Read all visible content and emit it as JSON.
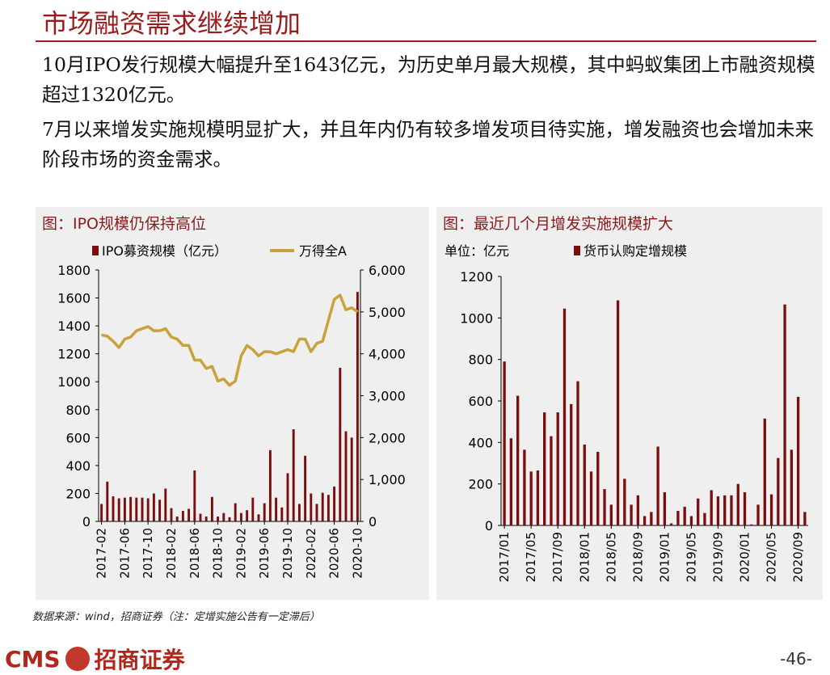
{
  "title": "市场融资需求继续增加",
  "paragraphs": [
    "10月IPO发行规模大幅提升至1643亿元，为历史单月最大规模，其中蚂蚁集团上市融资规模超过1320亿元。",
    "7月以来增发实施规模明显扩大，并且年内仍有较多增发项目待实施，增发融资也会增加未来阶段市场的资金需求。"
  ],
  "source": "数据来源：wind，招商证券（注：定增实施公告有一定滞后）",
  "logo": {
    "en": "CMS",
    "cn": "招商证券"
  },
  "page_number": "-46-",
  "chart_data": [
    {
      "type": "bar_line",
      "title": "图：IPO规模仍保持高位",
      "categories": [
        "2017-02",
        null,
        null,
        null,
        "2017-06",
        null,
        null,
        null,
        "2017-10",
        null,
        null,
        null,
        "2018-02",
        null,
        null,
        null,
        "2018-06",
        null,
        null,
        null,
        "2018-10",
        null,
        null,
        null,
        "2019-02",
        null,
        null,
        null,
        "2019-06",
        null,
        null,
        null,
        "2019-10",
        null,
        null,
        null,
        "2020-02",
        null,
        null,
        null,
        "2020-06",
        null,
        null,
        null,
        "2020-10"
      ],
      "series": [
        {
          "name": "IPO募资规模（亿元）",
          "type": "bar",
          "color": "#7a0d0d",
          "values": [
            125,
            285,
            180,
            165,
            170,
            175,
            170,
            170,
            165,
            200,
            155,
            235,
            95,
            35,
            75,
            90,
            365,
            55,
            35,
            175,
            35,
            60,
            30,
            130,
            60,
            80,
            170,
            50,
            130,
            510,
            170,
            100,
            345,
            660,
            125,
            470,
            200,
            125,
            205,
            190,
            250,
            1100,
            645,
            600,
            1643
          ]
        },
        {
          "name": "万得全A",
          "type": "line",
          "axis": "y2",
          "color": "#c9a23c",
          "values": [
            4450,
            4420,
            4300,
            4150,
            4350,
            4400,
            4550,
            4600,
            4650,
            4550,
            4550,
            4600,
            4400,
            4350,
            4200,
            4200,
            3850,
            3850,
            3650,
            3700,
            3350,
            3400,
            3250,
            3350,
            3950,
            4200,
            4100,
            3950,
            4050,
            4050,
            4000,
            4050,
            4100,
            4050,
            4350,
            4350,
            4050,
            4250,
            4300,
            4800,
            5300,
            5400,
            5050,
            5100,
            5000
          ]
        }
      ],
      "ylim": [
        0,
        1800
      ],
      "yticks": [
        0,
        200,
        400,
        600,
        800,
        1000,
        1200,
        1400,
        1600,
        1800
      ],
      "y2lim": [
        0,
        6000
      ],
      "y2ticks": [
        0,
        {
          "value": 1000,
          "label": "1,000"
        },
        {
          "value": 2000,
          "label": "2,000"
        },
        {
          "value": 3000,
          "label": "3,000"
        },
        {
          "value": 4000,
          "label": "4,000"
        },
        {
          "value": 5000,
          "label": "5,000"
        },
        {
          "value": 6000,
          "label": "6,000"
        }
      ]
    },
    {
      "type": "bar",
      "title": "图：最近几个月增发实施规模扩大",
      "y_label": "单位：亿元",
      "categories": [
        "2017/01",
        null,
        null,
        null,
        "2017/05",
        null,
        null,
        null,
        "2017/09",
        null,
        null,
        null,
        "2018/01",
        null,
        null,
        null,
        "2018/05",
        null,
        null,
        null,
        "2018/09",
        null,
        null,
        null,
        "2019/01",
        null,
        null,
        null,
        "2019/05",
        null,
        null,
        null,
        "2019/09",
        null,
        null,
        null,
        "2020/01",
        null,
        null,
        null,
        "2020/05",
        null,
        null,
        null,
        "2020/09",
        null
      ],
      "series": [
        {
          "name": "货币认购定增规模",
          "type": "bar",
          "color": "#7a0d0d",
          "values": [
            790,
            420,
            625,
            365,
            260,
            265,
            545,
            430,
            545,
            1045,
            585,
            695,
            390,
            260,
            355,
            175,
            100,
            1085,
            225,
            100,
            145,
            45,
            65,
            380,
            160,
            10,
            70,
            90,
            45,
            130,
            60,
            170,
            140,
            145,
            145,
            200,
            160,
            5,
            100,
            515,
            150,
            325,
            1065,
            365,
            620,
            65
          ]
        }
      ],
      "ylim": [
        0,
        1200
      ],
      "yticks": [
        0,
        200,
        400,
        600,
        800,
        1000,
        1200
      ]
    }
  ]
}
